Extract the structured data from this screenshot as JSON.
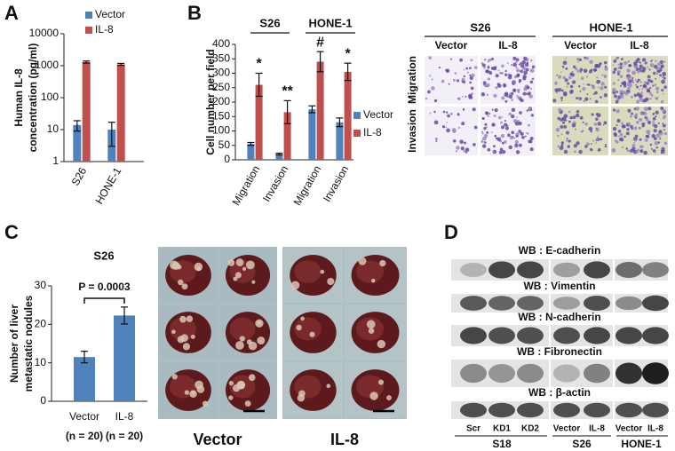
{
  "chart_data": [
    {
      "type": "bar",
      "panel_label": "A",
      "ylabel": [
        "Human IL-8",
        "concentration (pg/ml)"
      ],
      "categories": [
        "S26",
        "HONE-1"
      ],
      "series": [
        {
          "name": "Vector",
          "color": "#4f81bd",
          "values": [
            14,
            10
          ],
          "errors": [
            5,
            7
          ]
        },
        {
          "name": "IL-8",
          "color": "#c0504d",
          "values": [
            1300,
            1100
          ],
          "errors": [
            100,
            80
          ]
        }
      ],
      "ylim": [
        1,
        10000
      ],
      "yticks": [
        1,
        10,
        100,
        1000,
        10000
      ],
      "log_scale": true,
      "legend": "upper right"
    },
    {
      "type": "bar",
      "panel_label": "B",
      "ylabel": [
        "Cell number per field"
      ],
      "group_labels": [
        "S26",
        "HONE-1"
      ],
      "categories": [
        "Migration",
        "Invasion",
        "Migration",
        "Invasion"
      ],
      "series": [
        {
          "name": "Vector",
          "color": "#4f81bd",
          "values": [
            55,
            20,
            175,
            130
          ],
          "errors": [
            5,
            3,
            12,
            15
          ]
        },
        {
          "name": "IL-8",
          "color": "#c0504d",
          "values": [
            260,
            165,
            340,
            305
          ],
          "errors": [
            40,
            40,
            35,
            30
          ],
          "annotations": [
            "*",
            "**",
            "#",
            "*"
          ]
        }
      ],
      "ylim": [
        0,
        400
      ],
      "yticks": [
        0,
        50,
        100,
        150,
        200,
        250,
        300,
        350,
        400
      ],
      "log_scale": false,
      "legend": "right"
    },
    {
      "type": "bar",
      "panel_label": "C",
      "title": "S26",
      "ylabel": [
        "Number of liver",
        "metastatic nodules"
      ],
      "categories": [
        "Vector",
        "IL-8"
      ],
      "category_notes": [
        "(n = 20)",
        "(n = 20)"
      ],
      "series": [
        {
          "color": "#4f81bd",
          "values": [
            11.5,
            22.3
          ],
          "errors": [
            1.5,
            2.2
          ]
        }
      ],
      "annotation": "P = 0.0003",
      "ylim": [
        0,
        30
      ],
      "yticks": [
        0,
        10,
        20,
        30
      ],
      "log_scale": false
    }
  ],
  "micrographs": {
    "row_labels": [
      "Migration",
      "Invasion"
    ],
    "groups": [
      {
        "title": "S26",
        "columns": [
          "Vector",
          "IL-8"
        ]
      },
      {
        "title": "HONE-1",
        "columns": [
          "Vector",
          "IL-8"
        ]
      }
    ]
  },
  "liver_images": {
    "groups": [
      "Vector",
      "IL-8"
    ]
  },
  "western_blot": {
    "panel_label": "D",
    "probes": [
      "WB : E-cadherin",
      "WB : Vimentin",
      "WB : N-cadherin",
      "WB : Fibronectin",
      "WB : β-actin"
    ],
    "lanes": [
      "Scr",
      "KD1",
      "KD2",
      "Vector",
      "IL-8",
      "Vector",
      "IL-8"
    ],
    "groups": [
      "S18",
      "S26",
      "HONE-1"
    ]
  }
}
